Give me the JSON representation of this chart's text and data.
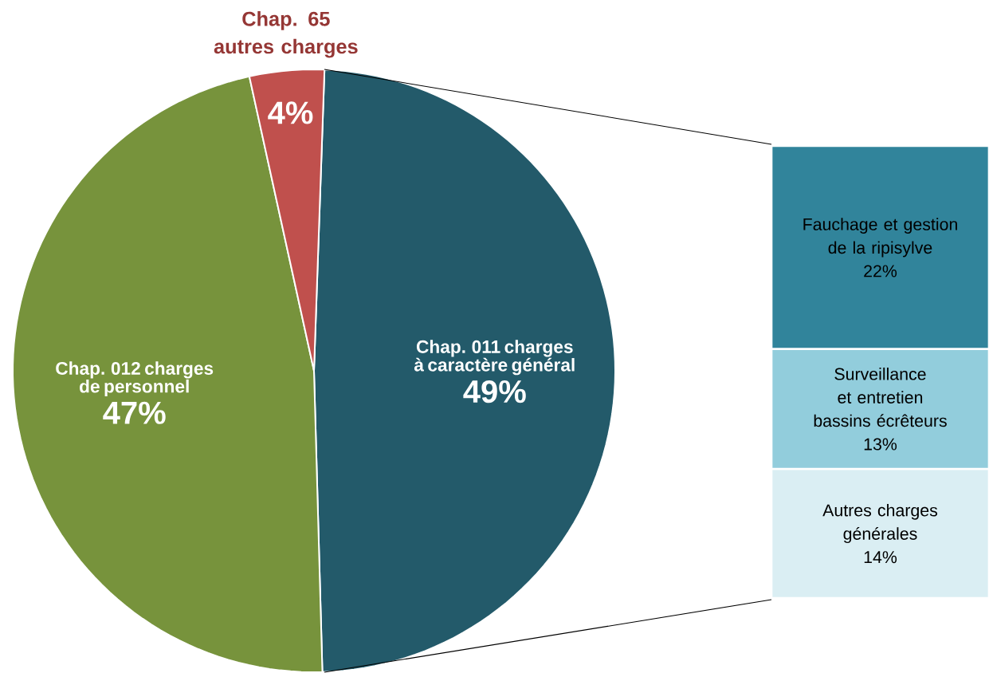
{
  "chart_data": [
    {
      "type": "pie",
      "categories": [
        "Chap. 011 charges à caractère général",
        "Chap. 012 charges de personnel",
        "Chap. 65 autres charges"
      ],
      "values": [
        49,
        47,
        4
      ],
      "colors": [
        "#235a6a",
        "#77933c",
        "#c0504d"
      ],
      "value_labels": [
        "49%",
        "47%",
        "4%"
      ]
    },
    {
      "type": "bar",
      "stacked": true,
      "categories": [
        null
      ],
      "series": [
        {
          "name": "Autres charges générales",
          "color": "#daeef3",
          "values": [
            14
          ],
          "value_labels": [
            "14%"
          ]
        },
        {
          "name": "Surveillance et entretien bassins écrêteurs",
          "color": "#92cddc",
          "values": [
            13
          ],
          "value_labels": [
            "13%"
          ]
        },
        {
          "name": "Fauchage et gestion de la ripisylve",
          "color": "#31849b",
          "values": [
            22
          ],
          "value_labels": [
            "22%"
          ]
        }
      ]
    }
  ]
}
